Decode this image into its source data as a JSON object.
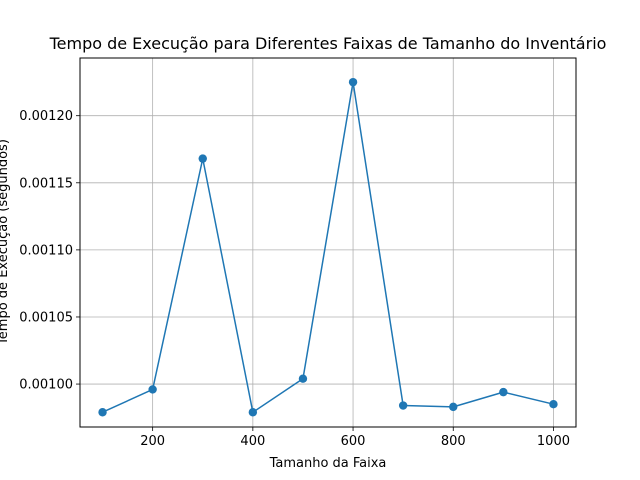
{
  "chart_data": {
    "type": "line",
    "title": "Tempo de Execução para Diferentes Faixas de Tamanho do Inventário",
    "xlabel": "Tamanho da Faixa",
    "ylabel": "Tempo de Execução (segundos)",
    "x": [
      100,
      200,
      300,
      400,
      500,
      600,
      700,
      800,
      900,
      1000
    ],
    "series": [
      {
        "values": [
          0.000979,
          0.000996,
          0.001168,
          0.000979,
          0.001004,
          0.001225,
          0.000984,
          0.000983,
          0.000994,
          0.000985
        ]
      }
    ],
    "xlim": [
      55,
      1045
    ],
    "ylim": [
      0.000968,
      0.001243
    ],
    "xticks": [
      200,
      400,
      600,
      800,
      1000
    ],
    "xtick_labels": [
      "200",
      "400",
      "600",
      "800",
      "1000"
    ],
    "yticks": [
      0.001,
      0.00105,
      0.0011,
      0.00115,
      0.0012
    ],
    "ytick_labels": [
      "0.00100",
      "0.00105",
      "0.00110",
      "0.00115",
      "0.00120"
    ],
    "grid": true,
    "marker": "circle",
    "colors": {
      "series": "#1f77b4",
      "grid": "#b0b0b0",
      "axes": "#000000"
    }
  }
}
